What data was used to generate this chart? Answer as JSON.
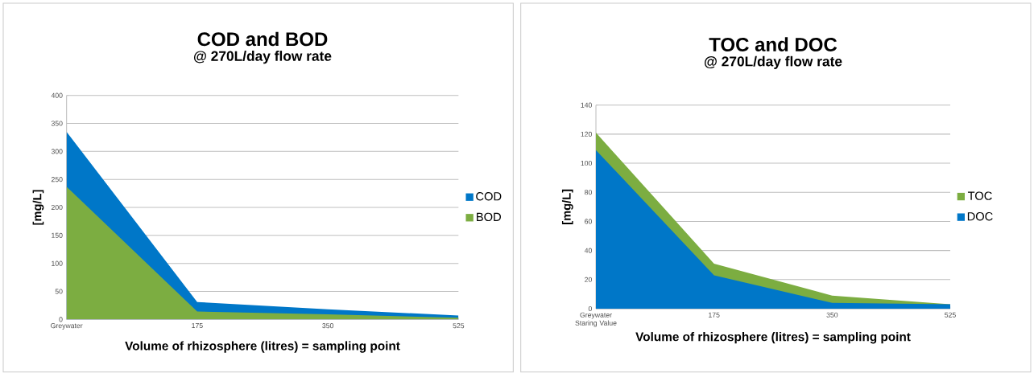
{
  "chart_data": [
    {
      "type": "area",
      "title": "COD and BOD",
      "subtitle": "@ 270L/day flow rate",
      "xlabel": "Volume of rhizosphere (litres) = sampling point",
      "ylabel": "[mg/L]",
      "categories": [
        "Greywater",
        "175",
        "350",
        "525"
      ],
      "series": [
        {
          "name": "COD",
          "color": "#0077c8",
          "values": [
            335,
            31,
            18,
            7
          ]
        },
        {
          "name": "BOD",
          "color": "#7cad41",
          "values": [
            237,
            14,
            9,
            3
          ]
        }
      ],
      "ylim": [
        0,
        400
      ],
      "yticks": [
        0,
        50,
        100,
        150,
        200,
        250,
        300,
        350,
        400
      ],
      "grid": "y",
      "legend": "right"
    },
    {
      "type": "area",
      "title": "TOC and DOC",
      "subtitle": "@ 270L/day flow rate",
      "xlabel": "Volume of rhizosphere (litres) = sampling point",
      "ylabel": "[mg/L]",
      "categories": [
        "Greywater Staring Value",
        "175",
        "350",
        "525"
      ],
      "series": [
        {
          "name": "TOC",
          "color": "#7cad41",
          "values": [
            121,
            31,
            9,
            3
          ]
        },
        {
          "name": "DOC",
          "color": "#0077c8",
          "values": [
            109,
            23,
            4,
            3
          ]
        }
      ],
      "ylim": [
        0,
        140
      ],
      "yticks": [
        0,
        20,
        40,
        60,
        80,
        100,
        120,
        140
      ],
      "grid": "y",
      "legend": "right"
    }
  ]
}
